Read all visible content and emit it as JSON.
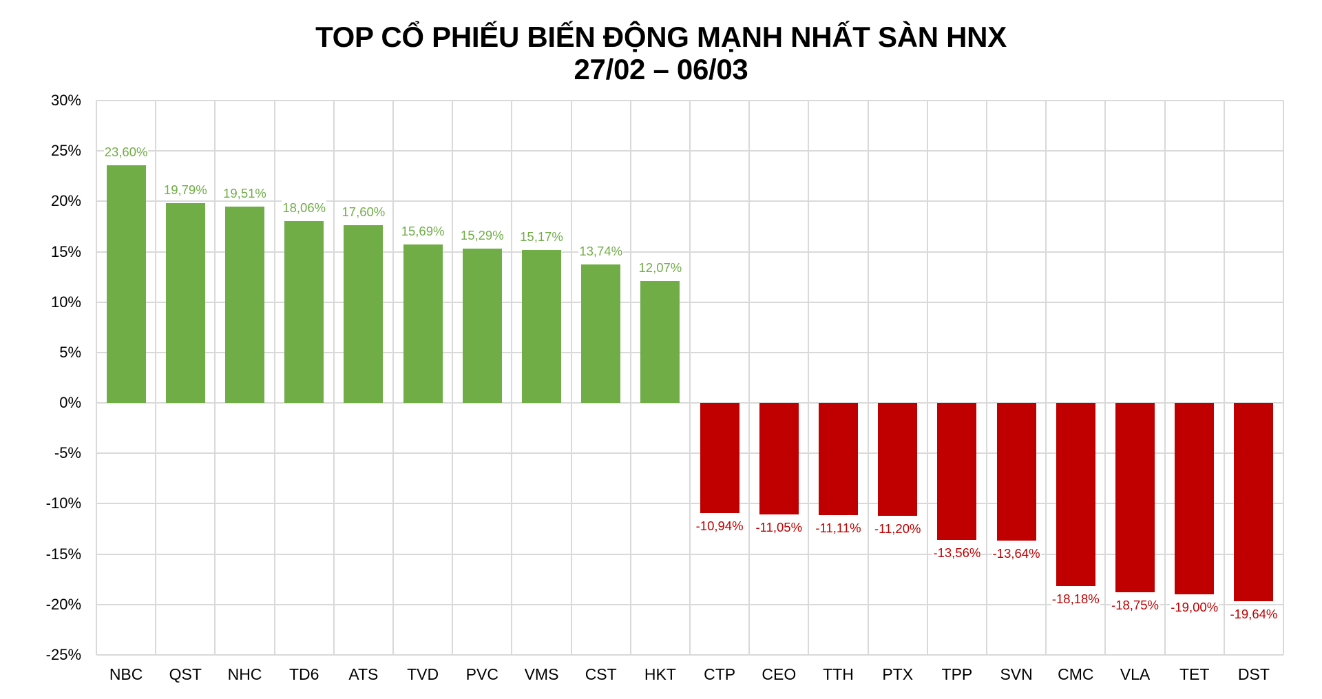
{
  "chart_data": {
    "type": "bar",
    "title": "TOP CỔ PHIẾU BIẾN ĐỘNG MẠNH NHẤT SÀN HNX",
    "subtitle": "27/02 – 06/03",
    "xlabel": "",
    "ylabel": "",
    "ylim": [
      -25,
      30
    ],
    "ytick_step": 5,
    "yticks": [
      "30%",
      "25%",
      "20%",
      "15%",
      "10%",
      "5%",
      "0%",
      "-5%",
      "-10%",
      "-15%",
      "-20%",
      "-25%"
    ],
    "grid": {
      "horizontal": true,
      "vertical": true
    },
    "legend": null,
    "categories": [
      "NBC",
      "QST",
      "NHC",
      "TD6",
      "ATS",
      "TVD",
      "PVC",
      "VMS",
      "CST",
      "HKT",
      "CTP",
      "CEO",
      "TTH",
      "PTX",
      "TPP",
      "SVN",
      "CMC",
      "VLA",
      "TET",
      "DST"
    ],
    "values": [
      23.6,
      19.79,
      19.51,
      18.06,
      17.6,
      15.69,
      15.29,
      15.17,
      13.74,
      12.07,
      -10.94,
      -11.05,
      -11.11,
      -11.2,
      -13.56,
      -13.64,
      -18.18,
      -18.75,
      -19.0,
      -19.64
    ],
    "data_labels": [
      "23,60%",
      "19,79%",
      "19,51%",
      "18,06%",
      "17,60%",
      "15,69%",
      "15,29%",
      "15,17%",
      "13,74%",
      "12,07%",
      "-10,94%",
      "-11,05%",
      "-11,11%",
      "-11,20%",
      "-13,56%",
      "-13,64%",
      "-18,18%",
      "-18,75%",
      "-19,00%",
      "-19,64%"
    ],
    "unit": "%",
    "colors": {
      "positive": "#70AD47",
      "negative": "#C00000",
      "grid": "#D9D9D9",
      "text": "#000000"
    }
  }
}
